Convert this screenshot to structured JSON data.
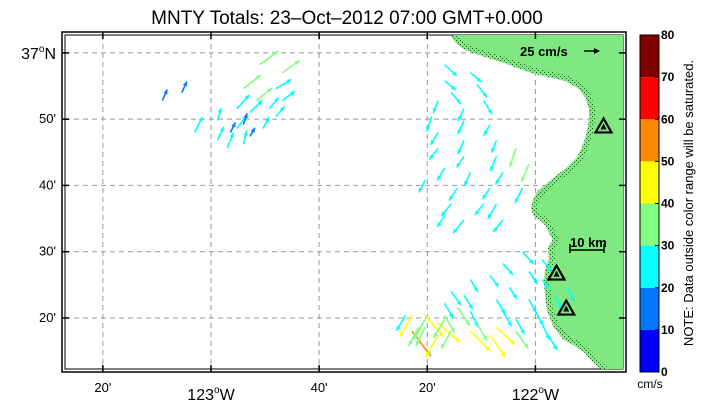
{
  "title": "MNTY Totals: 23–Oct–2012 07:00 GMT+0.000",
  "axes": {
    "y_ticks": [
      {
        "label": "37",
        "deg": "o",
        "suffix": "N",
        "lat": 37.0
      },
      {
        "label": "50'",
        "lat": 36.8333
      },
      {
        "label": "40'",
        "lat": 36.6667
      },
      {
        "label": "30'",
        "lat": 36.5
      },
      {
        "label": "20'",
        "lat": 36.3333
      }
    ],
    "x_ticks": [
      {
        "label": "20'",
        "lon": -123.3333
      },
      {
        "label": "123",
        "deg": "o",
        "suffix": "W",
        "lon": -123.0
      },
      {
        "label": "40'",
        "lon": -122.6667
      },
      {
        "label": "20'",
        "lon": -122.3333
      },
      {
        "label": "122",
        "deg": "o",
        "suffix": "W",
        "lon": -122.0
      }
    ],
    "lon_range": [
      -123.45,
      -121.73
    ],
    "lat_range": [
      36.205,
      37.045
    ],
    "grid": true
  },
  "reference_vector": {
    "label": "25 cm/s",
    "speed_cms": 25
  },
  "scale_bar": {
    "label": "10 km"
  },
  "colorbar": {
    "ticks": [
      "0",
      "10",
      "20",
      "30",
      "40",
      "50",
      "60",
      "70",
      "80"
    ],
    "unit": "cm/s",
    "note": "NOTE: Data outside color range will be saturated.",
    "bands": [
      "#0000ff",
      "#0077ff",
      "#00ffff",
      "#80ff80",
      "#ffff00",
      "#ff8800",
      "#ff0000",
      "#800000"
    ]
  },
  "land_color": "#80e880",
  "stations": [
    {
      "name": "north",
      "lon": -121.79,
      "lat": 36.815
    },
    {
      "name": "middle",
      "lon": -121.935,
      "lat": 36.445
    },
    {
      "name": "south",
      "lon": -121.905,
      "lat": 36.357
    }
  ],
  "vectors": [
    [
      -122.85,
      36.97,
      30,
      22
    ],
    [
      -122.78,
      36.95,
      28,
      20
    ],
    [
      -122.9,
      36.91,
      28,
      22
    ],
    [
      -122.8,
      36.91,
      25,
      15
    ],
    [
      -122.86,
      36.88,
      25,
      20
    ],
    [
      -122.78,
      36.88,
      20,
      15
    ],
    [
      -122.92,
      36.86,
      20,
      22
    ],
    [
      -122.82,
      36.86,
      15,
      18
    ],
    [
      -122.88,
      36.85,
      20,
      20
    ],
    [
      -122.8,
      36.84,
      14,
      16
    ],
    [
      -122.92,
      36.81,
      15,
      20
    ],
    [
      -122.84,
      36.81,
      10,
      18
    ],
    [
      -122.94,
      36.8,
      8,
      16
    ],
    [
      -122.88,
      36.79,
      8,
      14
    ],
    [
      -122.98,
      36.78,
      10,
      22
    ],
    [
      -122.9,
      36.77,
      5,
      22
    ],
    [
      -122.98,
      36.83,
      6,
      20
    ],
    [
      -122.9,
      36.82,
      6,
      18
    ],
    [
      -123.05,
      36.8,
      12,
      25
    ],
    [
      -122.95,
      36.76,
      10,
      25
    ],
    [
      -123.15,
      36.88,
      8,
      18
    ],
    [
      -123.09,
      36.9,
      8,
      18
    ],
    [
      -122.28,
      36.97,
      20,
      -18
    ],
    [
      -122.2,
      36.95,
      18,
      -15
    ],
    [
      -122.28,
      36.93,
      18,
      -15
    ],
    [
      -122.18,
      36.92,
      16,
      -20
    ],
    [
      -122.26,
      36.9,
      16,
      -18
    ],
    [
      -122.16,
      36.88,
      14,
      -22
    ],
    [
      -122.3,
      36.88,
      -8,
      -20
    ],
    [
      -122.22,
      36.86,
      -10,
      -20
    ],
    [
      -122.32,
      36.84,
      -8,
      -24
    ],
    [
      -122.22,
      36.83,
      -10,
      -22
    ],
    [
      -122.14,
      36.82,
      -10,
      -18
    ],
    [
      -122.3,
      36.8,
      -12,
      -20
    ],
    [
      -122.22,
      36.78,
      -10,
      -22
    ],
    [
      -122.12,
      36.78,
      -8,
      -20
    ],
    [
      -122.3,
      36.76,
      -14,
      -18
    ],
    [
      -122.22,
      36.74,
      -12,
      -18
    ],
    [
      -122.12,
      36.74,
      -10,
      -24
    ],
    [
      -122.28,
      36.71,
      -12,
      -20
    ],
    [
      -122.2,
      36.7,
      -10,
      -22
    ],
    [
      -122.1,
      36.7,
      -12,
      -20
    ],
    [
      -122.24,
      36.66,
      -14,
      -20
    ],
    [
      -122.14,
      36.66,
      -12,
      -18
    ],
    [
      -122.26,
      36.62,
      -16,
      -20
    ],
    [
      -122.16,
      36.62,
      -14,
      -18
    ],
    [
      -122.22,
      36.58,
      -18,
      -22
    ],
    [
      -122.1,
      36.58,
      -16,
      -20
    ],
    [
      -122.12,
      36.62,
      -14,
      -24
    ],
    [
      -122.04,
      36.66,
      -12,
      -24
    ],
    [
      -122.02,
      36.72,
      -12,
      -28
    ],
    [
      -122.06,
      36.76,
      -10,
      -30
    ],
    [
      -122.28,
      36.59,
      -12,
      -18
    ],
    [
      -122.34,
      36.68,
      -10,
      -20
    ],
    [
      -122.04,
      36.5,
      18,
      -20
    ],
    [
      -121.98,
      36.48,
      16,
      -18
    ],
    [
      -122.1,
      36.47,
      16,
      -18
    ],
    [
      -122.02,
      36.45,
      14,
      -20
    ],
    [
      -122.14,
      36.44,
      14,
      -18
    ],
    [
      -121.98,
      36.43,
      12,
      -16
    ],
    [
      -122.08,
      36.41,
      12,
      -18
    ],
    [
      -122.2,
      36.43,
      12,
      -20
    ],
    [
      -122.22,
      36.39,
      14,
      -22
    ],
    [
      -122.12,
      36.38,
      14,
      -24
    ],
    [
      -122.02,
      36.38,
      12,
      -22
    ],
    [
      -122.28,
      36.37,
      14,
      -24
    ],
    [
      -122.2,
      36.35,
      12,
      -25
    ],
    [
      -122.1,
      36.35,
      14,
      -24
    ],
    [
      -122.0,
      36.35,
      12,
      -22
    ],
    [
      -122.26,
      36.4,
      16,
      -22
    ],
    [
      -122.28,
      36.34,
      16,
      -28
    ],
    [
      -122.18,
      36.32,
      16,
      -28
    ],
    [
      -122.06,
      36.33,
      14,
      -24
    ],
    [
      -122.24,
      36.36,
      20,
      -30
    ],
    [
      -122.3,
      36.32,
      35,
      -30
    ],
    [
      -122.2,
      36.3,
      32,
      -32
    ],
    [
      -122.12,
      36.31,
      30,
      -28
    ],
    [
      -121.98,
      36.32,
      12,
      -26
    ],
    [
      -121.9,
      36.41,
      10,
      -22
    ],
    [
      -121.94,
      36.39,
      10,
      -20
    ],
    [
      -122.38,
      36.3,
      30,
      -40
    ],
    [
      -122.34,
      36.34,
      30,
      -35
    ],
    [
      -122.14,
      36.29,
      25,
      -35
    ],
    [
      -122.06,
      36.3,
      20,
      -28
    ],
    [
      -121.96,
      36.29,
      14,
      -24
    ],
    [
      -122.4,
      36.34,
      -15,
      -25
    ],
    [
      -122.34,
      36.31,
      -15,
      -30
    ],
    [
      -122.38,
      36.34,
      -20,
      -35
    ],
    [
      -122.3,
      36.29,
      -20,
      -35
    ],
    [
      -122.34,
      36.33,
      -18,
      -32
    ],
    [
      -122.26,
      36.3,
      -16,
      -28
    ],
    [
      -122.28,
      36.33,
      -18,
      -30
    ],
    [
      -122.36,
      36.31,
      -16,
      -30
    ]
  ]
}
